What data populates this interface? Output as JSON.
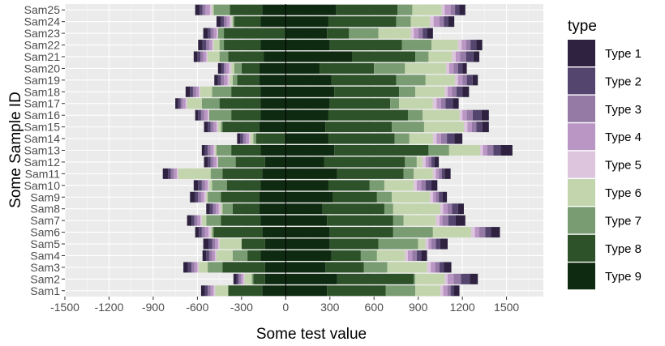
{
  "chart_data": {
    "type": "bar",
    "orientation": "horizontal",
    "stacking": "diverging",
    "xlabel": "Some test value",
    "ylabel": "Some Sample ID",
    "xlim": [
      -1500,
      1750
    ],
    "xticks": [
      -1500,
      -1200,
      -900,
      -600,
      -300,
      0,
      300,
      600,
      900,
      1200,
      1500
    ],
    "grid": true,
    "legend_title": "type",
    "legend_position": "right",
    "categories": [
      "Sam1",
      "Sam2",
      "Sam3",
      "Sam4",
      "Sam5",
      "Sam6",
      "Sam7",
      "Sam8",
      "Sam9",
      "Sam10",
      "Sam11",
      "Sam12",
      "Sam13",
      "Sam14",
      "Sam15",
      "Sam16",
      "Sam17",
      "Sam18",
      "Sam19",
      "Sam20",
      "Sam21",
      "Sam22",
      "Sam23",
      "Sam24",
      "Sam25"
    ],
    "series": [
      {
        "name": "Type 1",
        "color": "#2E2240",
        "negative": [
          25,
          20,
          30,
          25,
          35,
          25,
          30,
          25,
          35,
          30,
          35,
          25,
          20,
          20,
          25,
          20,
          20,
          30,
          25,
          25,
          25,
          30,
          30,
          30,
          30
        ],
        "positive": [
          40,
          55,
          50,
          40,
          50,
          60,
          65,
          40,
          30,
          40,
          40,
          30,
          80,
          55,
          45,
          50,
          40,
          45,
          35,
          30,
          40,
          40,
          40,
          40,
          40
        ]
      },
      {
        "name": "Type 2",
        "color": "#54456F",
        "negative": [
          20,
          15,
          25,
          20,
          25,
          20,
          20,
          20,
          20,
          25,
          20,
          20,
          20,
          20,
          20,
          20,
          15,
          20,
          20,
          15,
          20,
          25,
          20,
          20,
          20
        ],
        "positive": [
          20,
          60,
          30,
          30,
          30,
          40,
          50,
          40,
          25,
          40,
          20,
          20,
          50,
          50,
          40,
          60,
          50,
          40,
          40,
          30,
          50,
          40,
          30,
          30,
          30
        ]
      },
      {
        "name": "Type 3",
        "color": "#947AA5",
        "negative": [
          20,
          15,
          20,
          20,
          20,
          20,
          20,
          20,
          20,
          20,
          20,
          20,
          20,
          20,
          20,
          20,
          15,
          20,
          20,
          15,
          20,
          20,
          20,
          20,
          20
        ],
        "positive": [
          20,
          50,
          30,
          30,
          30,
          40,
          40,
          30,
          20,
          30,
          20,
          20,
          40,
          40,
          30,
          40,
          30,
          30,
          30,
          30,
          40,
          30,
          30,
          30,
          30
        ]
      },
      {
        "name": "Type 4",
        "color": "#B996C3",
        "negative": [
          20,
          15,
          20,
          20,
          20,
          25,
          20,
          20,
          20,
          20,
          20,
          20,
          20,
          20,
          20,
          25,
          20,
          20,
          25,
          20,
          20,
          20,
          20,
          20,
          30
        ],
        "positive": [
          30,
          40,
          30,
          30,
          20,
          30,
          20,
          30,
          20,
          30,
          20,
          20,
          30,
          30,
          30,
          30,
          30,
          30,
          30,
          30,
          30,
          30,
          30,
          40,
          40
        ]
      },
      {
        "name": "Type 5",
        "color": "#DDC5DE",
        "negative": [
          10,
          10,
          10,
          10,
          10,
          15,
          10,
          15,
          15,
          10,
          10,
          10,
          10,
          10,
          10,
          10,
          10,
          10,
          15,
          15,
          10,
          10,
          10,
          10,
          15
        ],
        "positive": [
          20,
          20,
          25,
          20,
          20,
          25,
          25,
          20,
          20,
          20,
          20,
          20,
          20,
          25,
          25,
          20,
          25,
          20,
          20,
          20,
          25,
          25,
          20,
          25,
          20
        ]
      },
      {
        "name": "Type 6",
        "color": "#C3D5AD",
        "negative": [
          90,
          50,
          60,
          110,
          150,
          10,
          30,
          10,
          10,
          20,
          220,
          0,
          10,
          20,
          20,
          0,
          100,
          80,
          20,
          20,
          80,
          40,
          0,
          10,
          10
        ],
        "positive": [
          170,
          200,
          270,
          190,
          50,
          260,
          220,
          320,
          260,
          200,
          130,
          40,
          210,
          160,
          270,
          250,
          230,
          200,
          200,
          280,
          160,
          180,
          220,
          130,
          200
        ]
      },
      {
        "name": "Type 7",
        "color": "#7A9C72",
        "negative": [
          0,
          10,
          100,
          100,
          0,
          10,
          100,
          70,
          90,
          100,
          80,
          120,
          100,
          20,
          10,
          150,
          120,
          130,
          30,
          50,
          60,
          30,
          40,
          10,
          110
        ],
        "positive": [
          200,
          10,
          160,
          110,
          270,
          270,
          70,
          60,
          100,
          100,
          70,
          80,
          140,
          100,
          220,
          100,
          60,
          110,
          200,
          210,
          90,
          200,
          200,
          100,
          100
        ]
      },
      {
        "name": "Type 8",
        "color": "#2D5128",
        "negative": [
          230,
          80,
          290,
          90,
          160,
          330,
          270,
          180,
          260,
          230,
          270,
          200,
          200,
          200,
          250,
          200,
          280,
          200,
          150,
          120,
          240,
          250,
          420,
          180,
          220
        ],
        "positive": [
          400,
          520,
          260,
          200,
          330,
          430,
          450,
          420,
          300,
          280,
          450,
          550,
          640,
          450,
          450,
          540,
          410,
          440,
          440,
          370,
          430,
          490,
          150,
          460,
          420
        ]
      },
      {
        "name": "Type 9",
        "color": "#0E2A10",
        "negative": [
          160,
          140,
          140,
          170,
          140,
          160,
          170,
          180,
          180,
          170,
          160,
          140,
          170,
          0,
          180,
          170,
          170,
          170,
          180,
          180,
          150,
          170,
          0,
          170,
          160
        ],
        "positive": [
          280,
          350,
          270,
          310,
          300,
          300,
          280,
          250,
          320,
          290,
          350,
          260,
          330,
          290,
          270,
          290,
          300,
          330,
          310,
          230,
          450,
          300,
          280,
          290,
          340
        ]
      }
    ]
  }
}
